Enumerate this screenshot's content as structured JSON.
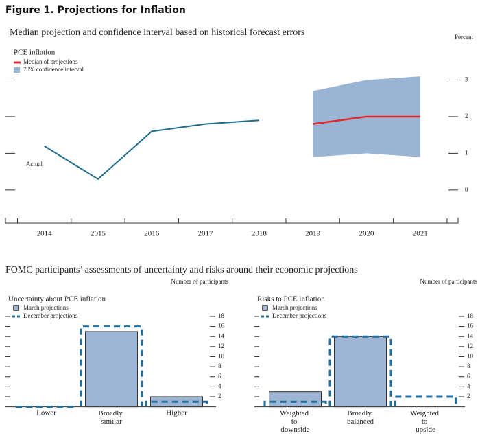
{
  "title": "Figure 1. Projections for Inflation",
  "chart_data": [
    {
      "type": "line",
      "heading": "Median projection and confidence interval based on historical forecast errors",
      "title": "PCE inflation",
      "ylabel": "Percent",
      "categories": [
        "2014",
        "2015",
        "2016",
        "2017",
        "2018",
        "2019",
        "2020",
        "2021"
      ],
      "series": [
        {
          "name": "Actual",
          "color": "#1e6b8c",
          "values": [
            1.2,
            0.3,
            1.6,
            1.8,
            1.9,
            null,
            null,
            null
          ]
        },
        {
          "name": "Median of projections",
          "color": "#e0282e",
          "values": [
            null,
            null,
            null,
            null,
            null,
            1.8,
            2.0,
            2.0
          ]
        }
      ],
      "band": {
        "name": "70% confidence interval",
        "color": "#9ab4d3",
        "lower": [
          null,
          null,
          null,
          null,
          null,
          0.9,
          1.0,
          0.9
        ],
        "upper": [
          null,
          null,
          null,
          null,
          null,
          2.7,
          3.0,
          3.1
        ]
      },
      "ylim": [
        -0.9,
        4.0
      ],
      "yticks": [
        0,
        1,
        2,
        3
      ]
    },
    {
      "type": "bar",
      "heading": "FOMC participants’ assessments of uncertainty and risks around their economic projections",
      "title": "Uncertainty about PCE inflation",
      "ylabel": "Number of participants",
      "categories": [
        "Lower",
        "Broadly similar",
        "Higher"
      ],
      "series": [
        {
          "name": "March projections",
          "color": "#9db5d3",
          "values": [
            0,
            15,
            2
          ]
        },
        {
          "name": "December projections",
          "color": "#1f6fa0",
          "line_style": "dashed",
          "values": [
            0,
            16,
            1
          ]
        }
      ],
      "ylim": [
        0,
        19.5
      ],
      "yticks": [
        2,
        4,
        6,
        8,
        10,
        12,
        14,
        16,
        18
      ]
    },
    {
      "type": "bar",
      "title": "Risks to PCE inflation",
      "ylabel": "Number of participants",
      "categories": [
        "Weighted to downside",
        "Broadly balanced",
        "Weighted to upside"
      ],
      "series": [
        {
          "name": "March projections",
          "color": "#9db5d3",
          "values": [
            3,
            14,
            0
          ]
        },
        {
          "name": "December projections",
          "color": "#1f6fa0",
          "line_style": "dashed",
          "values": [
            1,
            14,
            2
          ]
        }
      ],
      "ylim": [
        0,
        19.5
      ],
      "yticks": [
        2,
        4,
        6,
        8,
        10,
        12,
        14,
        16,
        18
      ]
    }
  ]
}
